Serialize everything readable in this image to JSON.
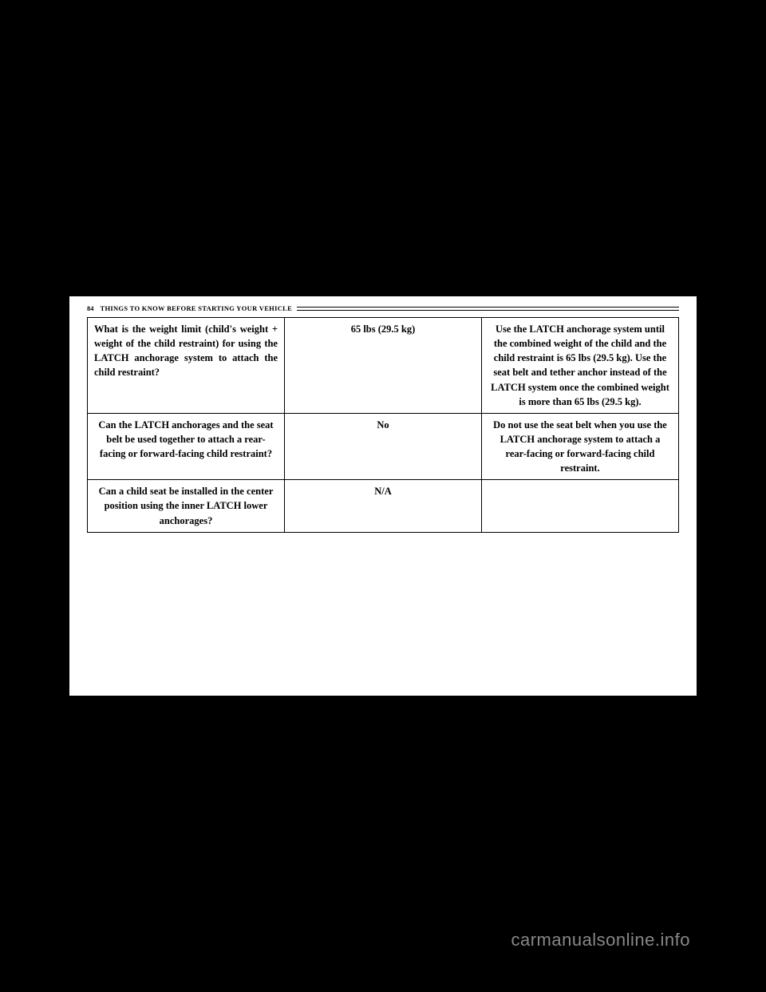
{
  "header": {
    "page_number": "84",
    "section_title": "THINGS TO KNOW BEFORE STARTING YOUR VEHICLE"
  },
  "table": {
    "rows": [
      {
        "col1": "What is the weight limit (child's weight + weight of the child restraint) for using the LATCH anchorage system to attach the child restraint?",
        "col2": "65 lbs (29.5 kg)",
        "col3": "Use the LATCH anchorage system until the combined weight of the child and the child restraint is 65 lbs (29.5 kg). Use the seat belt and tether anchor instead of the LATCH system once the combined weight is more than 65 lbs (29.5 kg).",
        "col1_align": "justify",
        "col3_align": "center"
      },
      {
        "col1": "Can the LATCH anchorages and the seat belt be used together to attach a rear-facing or forward-facing child restraint?",
        "col2": "No",
        "col3": "Do not use the seat belt when you use the LATCH anchorage system to attach a rear-facing or forward-facing child restraint.",
        "col1_align": "center",
        "col3_align": "center"
      },
      {
        "col1": "Can a child seat be installed in the center position using the inner LATCH lower anchorages?",
        "col2": "N/A",
        "col3": "",
        "col1_align": "center",
        "col3_align": "center"
      }
    ]
  },
  "watermark": "carmanualsonline.info"
}
